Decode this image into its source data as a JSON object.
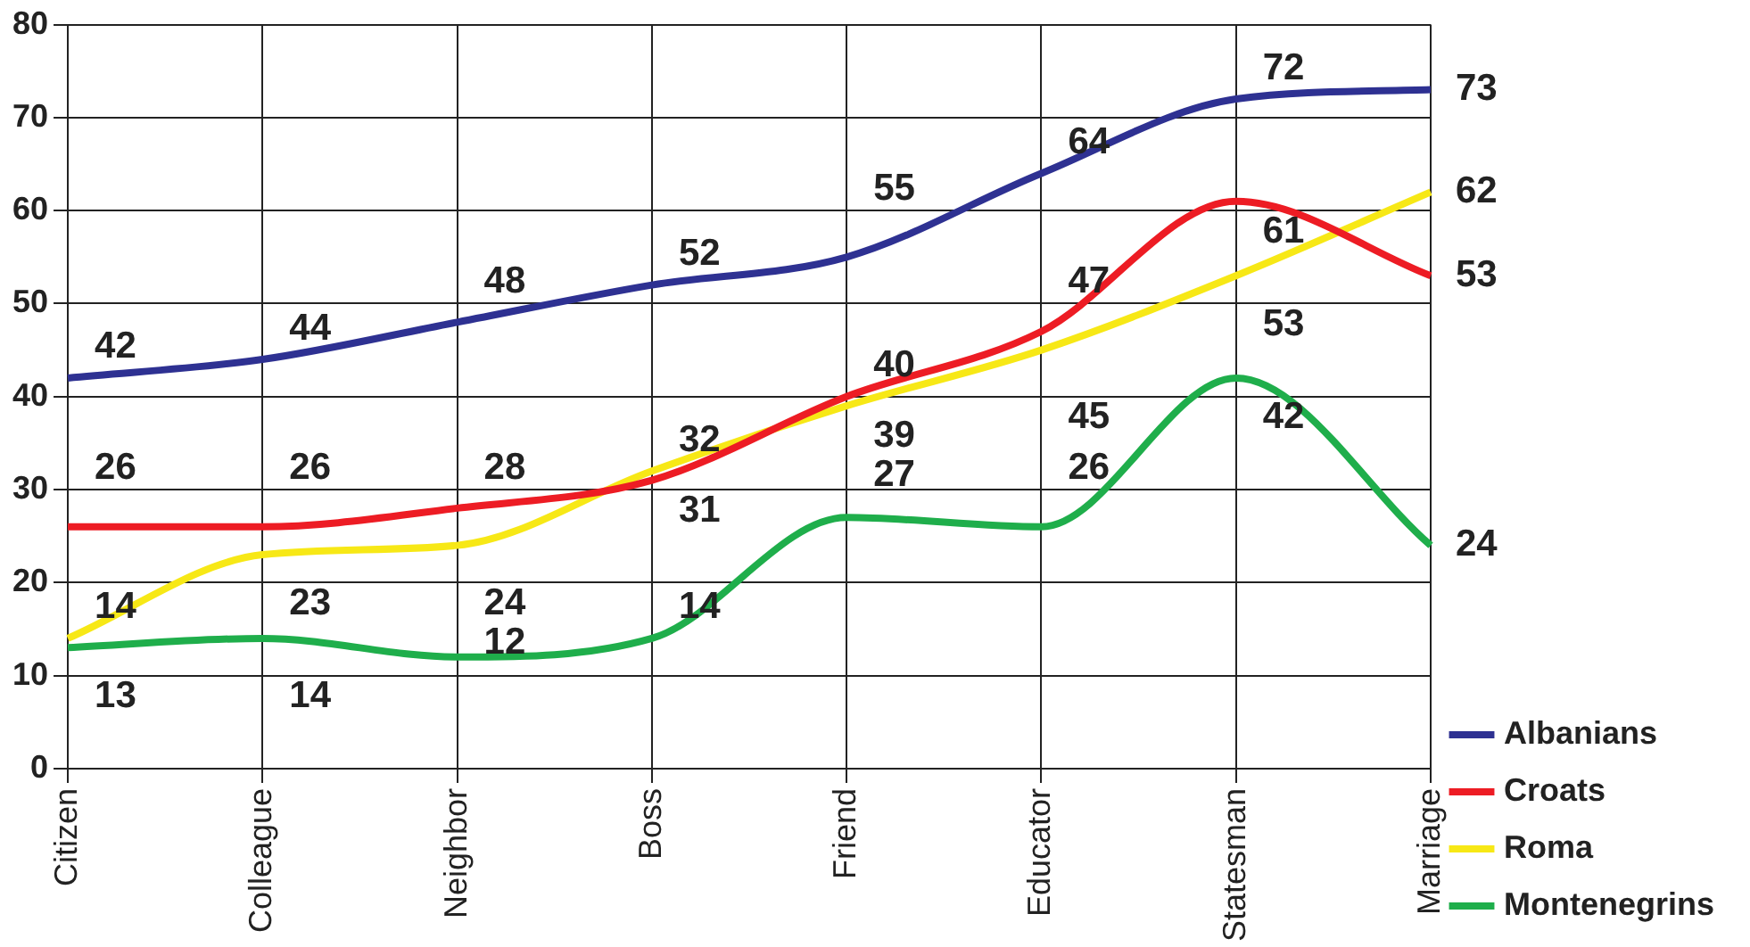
{
  "chart_data": {
    "type": "line",
    "categories": [
      "Citizen",
      "Colleague",
      "Neighbor",
      "Boss",
      "Friend",
      "Educator",
      "Statesman",
      "Marriage"
    ],
    "series": [
      {
        "name": "Albanians",
        "color": "#2e3192",
        "values": [
          42,
          44,
          48,
          52,
          55,
          64,
          72,
          73
        ]
      },
      {
        "name": "Croats",
        "color": "#ed1c24",
        "values": [
          26,
          26,
          28,
          31,
          40,
          47,
          61,
          53
        ]
      },
      {
        "name": "Roma",
        "color": "#f7e816",
        "values": [
          14,
          23,
          24,
          32,
          39,
          45,
          53,
          62
        ]
      },
      {
        "name": "Montenegrins",
        "color": "#1fae4b",
        "values": [
          13,
          14,
          12,
          14,
          27,
          26,
          42,
          24
        ]
      }
    ],
    "ylim": [
      0,
      80
    ],
    "yticks": [
      0,
      10,
      20,
      30,
      40,
      50,
      60,
      70,
      80
    ],
    "grid": true,
    "legend": "bottom right",
    "data_labels": true,
    "marker": "none",
    "line_style": "solid"
  }
}
